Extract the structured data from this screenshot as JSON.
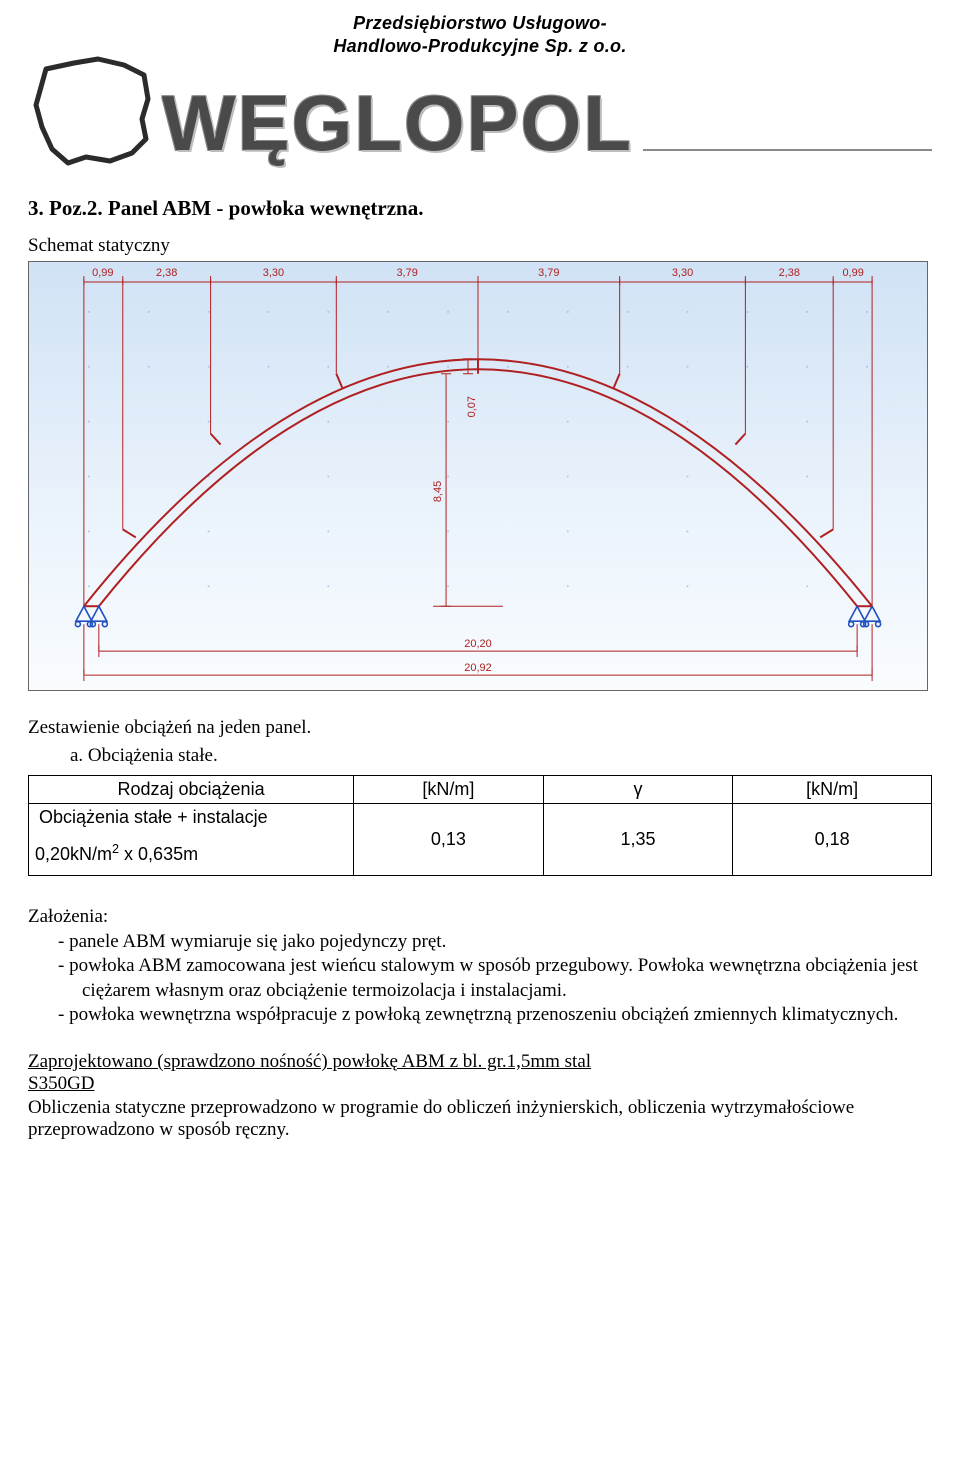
{
  "header": {
    "line1": "Przedsiębiorstwo Usługowo-",
    "line2": "Handlowo-Produkcyjne Sp. z o.o.",
    "brand": "WĘGLOPOL"
  },
  "title": "3.  Poz.2. Panel ABM - powłoka wewnętrzna.",
  "schematic_label": "Schemat statyczny",
  "diagram": {
    "background_top": "#d0e2f5",
    "background_bottom": "#f9fcff",
    "grid_color": "#8aa1dd",
    "arc_color": "#b02020",
    "support_color": "#2050c0",
    "dim_color": "#b02020",
    "text_color": "#b02020",
    "segment_widths": [
      "0,99",
      "2,38",
      "3,30",
      "3,79",
      "3,79",
      "3,30",
      "2,38",
      "0,99"
    ],
    "height_inner": "8,45",
    "height_gap": "0,07",
    "span_inner": "20,20",
    "span_outer": "20,92"
  },
  "loads_heading": "Zestawienie obciążeń na jeden panel.",
  "loads_sub": "a.  Obciążenia stałe.",
  "table": {
    "columns": [
      "Rodzaj obciążenia",
      "[kN/m]",
      "γ",
      "[kN/m]"
    ],
    "row_label_top": "Obciążenia stałe + instalacje",
    "row_label_bot": "0,20kN/m² x 0,635m",
    "values": [
      "0,13",
      "1,35",
      "0,18"
    ]
  },
  "assumptions_label": "Założenia:",
  "assumptions": [
    "panele ABM wymiaruje się jako pojedynczy pręt.",
    "powłoka ABM zamocowana jest wieńcu stalowym w sposób przegubowy. Powłoka wewnętrzna  obciążenia jest ciężarem własnym oraz obciążenie termoizolacja i instalacjami.",
    "powłoka wewnętrzna współpracuje z powłoką zewnętrzną przenoszeniu obciążeń zmiennych klimatycznych."
  ],
  "result": {
    "line1": "Zaprojektowano (sprawdzono nośność) powłokę ABM z bl. gr.1,5mm stal",
    "line2": "S350GD",
    "tail": "Obliczenia statyczne przeprowadzono w programie do obliczeń inżynierskich, obliczenia wytrzymałościowe przeprowadzono w sposób ręczny."
  }
}
